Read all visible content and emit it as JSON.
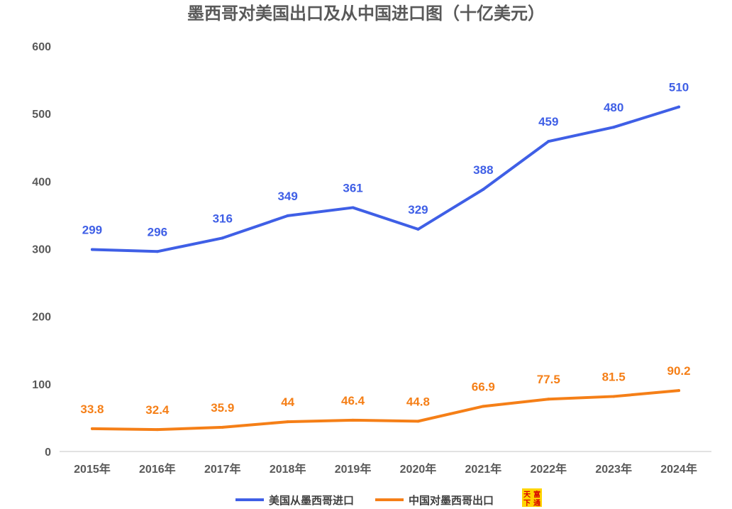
{
  "chart_data": {
    "type": "line",
    "title": "墨西哥对美国出口及从中国进口图（十亿美元）",
    "categories": [
      "2015年",
      "2016年",
      "2017年",
      "2018年",
      "2019年",
      "2020年",
      "2021年",
      "2022年",
      "2023年",
      "2024年"
    ],
    "series": [
      {
        "name": "美国从墨西哥进口",
        "color": "#3f5fe6",
        "values": [
          299,
          296,
          316,
          349,
          361,
          329,
          388,
          459,
          480,
          510
        ],
        "labels": [
          "299",
          "296",
          "316",
          "349",
          "361",
          "329",
          "388",
          "459",
          "480",
          "510"
        ]
      },
      {
        "name": "中国对墨西哥出口",
        "color": "#f57f17",
        "values": [
          33.8,
          32.4,
          35.9,
          44,
          46.4,
          44.8,
          66.9,
          77.5,
          81.5,
          90.2
        ],
        "labels": [
          "33.8",
          "32.4",
          "35.9",
          "44",
          "46.4",
          "44.8",
          "66.9",
          "77.5",
          "81.5",
          "90.2"
        ]
      }
    ],
    "ylim": [
      0,
      600
    ],
    "yticks": [
      "0",
      "100",
      "200",
      "300",
      "400",
      "500",
      "600"
    ],
    "grid": false,
    "legend_position": "bottom"
  },
  "logo": {
    "text": "天下富通"
  }
}
